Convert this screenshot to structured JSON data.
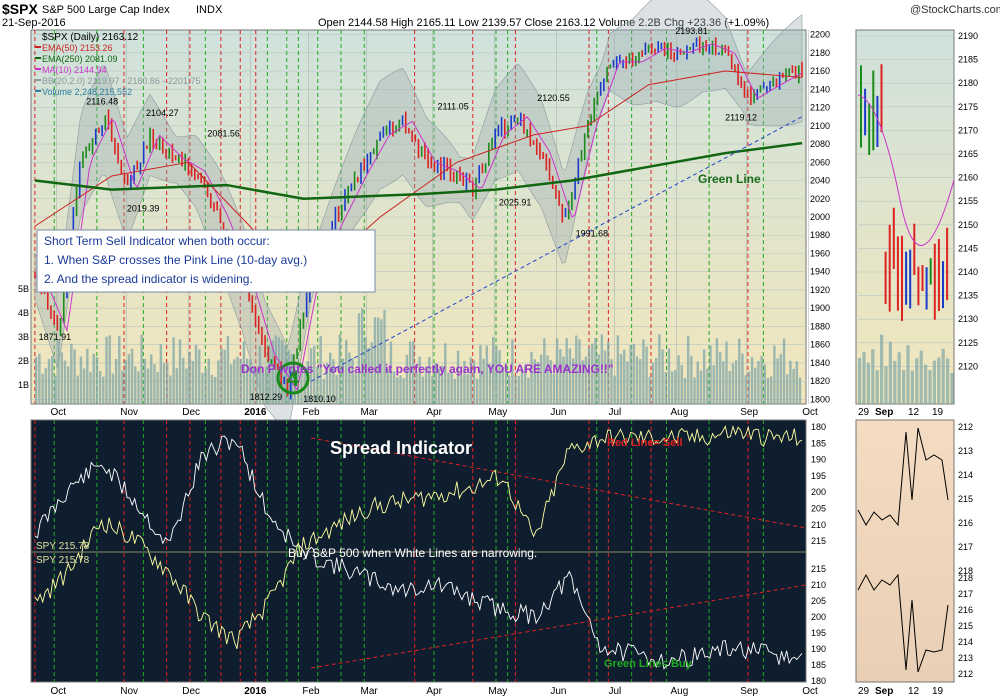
{
  "header": {
    "symbol": "$SPX",
    "name": "S&P 500 Large Cap Index",
    "exchange": "INDX",
    "date": "21-Sep-2016",
    "ohlc": "Open 2144.58   High 2165.11   Low 2139.57   Close 2163.12   Volume 2.2B   Chg +23.36 (+1.09%)",
    "watermark": "@StockCharts.com"
  },
  "legend": {
    "title": "$SPX (Daily) 2163.12",
    "items": [
      {
        "label": "EMA(50) 2153.26",
        "color": "#cc2222"
      },
      {
        "label": "EMA(250) 2081.09",
        "color": "#116611"
      },
      {
        "label": "MA(10) 2144.94",
        "color": "#cc33cc"
      },
      {
        "label": "BB(20,2.0) 2119.97 - 2180.86 - 2201.75",
        "color": "#8a9aa0"
      },
      {
        "label": "Volume 2,248,215,552",
        "color": "#2f7f9f"
      }
    ]
  },
  "notes": {
    "indicator_box": [
      "Short Term Sell Indicator when both occur:",
      "1.  When S&P crosses the Pink Line (10-day avg.)",
      "2.  And the spread indicator is widening."
    ],
    "quote": "Don P writes \"You called it perfectly again, YOU ARE AMAZING!!\"",
    "circle_number": "4",
    "green_line": "Green Line",
    "spread_title": "Spread Indicator",
    "red_line_sell": "Red Line= Sell",
    "green_line_buy": "Green Line= Buy",
    "buy_note": "Buy S&P 500 when White Lines are narrowing.",
    "spy_label_1": "SPY 215.78",
    "spy_label_2": "SPY 215.78"
  },
  "chart_data": [
    {
      "type": "line",
      "name": "main_price",
      "x_ticks": [
        "Oct",
        "Nov",
        "Dec",
        "2016",
        "Feb",
        "Mar",
        "Apr",
        "May",
        "Jun",
        "Jul",
        "Aug",
        "Sep",
        "Oct"
      ],
      "y_ticks": [
        1800,
        1820,
        1840,
        1860,
        1880,
        1900,
        1920,
        1940,
        1960,
        1980,
        2000,
        2020,
        2040,
        2060,
        2080,
        2100,
        2120,
        2140,
        2160,
        2180,
        2200
      ],
      "volume_ticks": [
        "5B",
        "4B",
        "3B",
        "2B",
        "1B"
      ],
      "ylim": [
        1795,
        2205
      ],
      "annotations": [
        {
          "label": "1871.91",
          "value": 1871.91
        },
        {
          "label": "2116.48",
          "value": 2116.48
        },
        {
          "label": "2019.39",
          "value": 2019.39
        },
        {
          "label": "2104.27",
          "value": 2104.27
        },
        {
          "label": "2081.56",
          "value": 2081.56
        },
        {
          "label": "1812.29",
          "value": 1812.29
        },
        {
          "label": "1810.10",
          "value": 1810.1
        },
        {
          "label": "2111.05",
          "value": 2111.05
        },
        {
          "label": "2025.91",
          "value": 2025.91
        },
        {
          "label": "2120.55",
          "value": 2120.55
        },
        {
          "label": "1991.68",
          "value": 1991.68
        },
        {
          "label": "2193.81",
          "value": 2193.81
        },
        {
          "label": "2119.12",
          "value": 2119.12
        }
      ],
      "series": [
        {
          "name": "price",
          "x": [
            0,
            0.03,
            0.06,
            0.09,
            0.12,
            0.15,
            0.18,
            0.21,
            0.24,
            0.27,
            0.3,
            0.33,
            0.36,
            0.39,
            0.42,
            0.45,
            0.48,
            0.51,
            0.54,
            0.57,
            0.6,
            0.63,
            0.66,
            0.69,
            0.72,
            0.75,
            0.78,
            0.81,
            0.84,
            0.87,
            0.9,
            0.93,
            0.96,
            1.0
          ],
          "values": [
            1935,
            1875,
            2060,
            2110,
            2030,
            2090,
            2065,
            2050,
            2000,
            1935,
            1850,
            1810,
            1940,
            1995,
            2045,
            2090,
            2105,
            2060,
            2050,
            2030,
            2090,
            2110,
            2070,
            1995,
            2100,
            2170,
            2170,
            2185,
            2180,
            2190,
            2180,
            2130,
            2145,
            2163
          ]
        },
        {
          "name": "EMA(250)",
          "x": [
            0,
            0.1,
            0.25,
            0.35,
            0.5,
            0.6,
            0.7,
            0.8,
            0.9,
            1.0
          ],
          "values": [
            2040,
            2030,
            2035,
            2020,
            2025,
            2030,
            2040,
            2055,
            2070,
            2081
          ]
        },
        {
          "name": "EMA(50)",
          "x": [
            0,
            0.1,
            0.2,
            0.28,
            0.35,
            0.45,
            0.55,
            0.65,
            0.72,
            0.8,
            0.9,
            1.0
          ],
          "values": [
            1990,
            2045,
            2060,
            1990,
            1925,
            2000,
            2060,
            2090,
            2100,
            2145,
            2160,
            2153
          ]
        },
        {
          "name": "trend",
          "x": [
            0.36,
            1.0
          ],
          "values": [
            1820,
            2110
          ]
        }
      ]
    },
    {
      "type": "line",
      "name": "spread_indicator",
      "left_ticks": [
        180,
        185,
        190,
        195,
        200,
        205,
        210,
        215
      ],
      "right_ticks": [
        215,
        210,
        205,
        200,
        195,
        190,
        185,
        180
      ],
      "series": [
        {
          "name": "upper",
          "values": [
            195,
            188,
            184,
            190,
            197,
            183,
            180,
            192,
            198,
            200,
            202,
            204,
            203,
            205,
            207,
            208,
            202,
            213,
            214,
            215,
            214,
            213,
            214,
            215
          ]
        },
        {
          "name": "lower",
          "values": [
            190,
            195,
            203,
            200,
            195,
            188,
            184,
            190,
            199,
            202,
            205,
            206,
            207,
            208,
            210,
            200,
            214,
            216,
            216,
            216,
            216,
            217,
            216,
            216
          ]
        }
      ]
    },
    {
      "type": "line",
      "name": "zoom_panel",
      "x_ticks": [
        "29",
        "Sep",
        "12",
        "19"
      ],
      "y_ticks": [
        2190,
        2185,
        2180,
        2175,
        2170,
        2165,
        2160,
        2155,
        2150,
        2145,
        2140,
        2135,
        2130,
        2125,
        2120
      ],
      "lower_ticks": [
        212,
        213,
        214,
        215,
        216,
        217,
        218
      ]
    }
  ],
  "colors": {
    "main_bg_top": "#cfe2dc",
    "main_bg_bottom": "#f2e6bb",
    "spread_bg": "#0f1e2f",
    "zoom_lower_bg": "#f4dcc2",
    "green_line": "#1a6b1a",
    "sell_line": "#cc2222",
    "buy_line": "#22aa22"
  }
}
